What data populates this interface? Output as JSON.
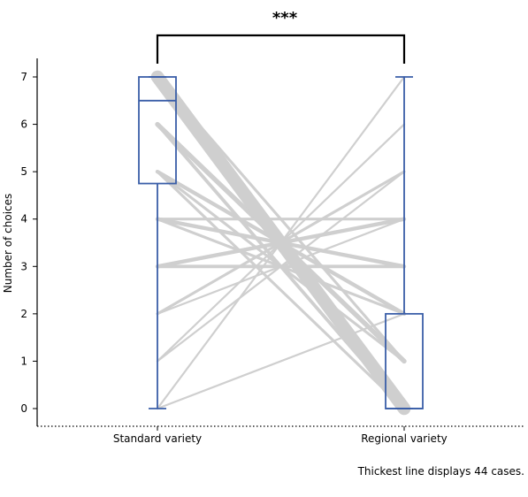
{
  "chart_data": {
    "type": "boxplot-with-paired-lines",
    "categories": [
      "Standard variety",
      "Regional variety"
    ],
    "ylabel": "Number of choices",
    "ylim": [
      0,
      7
    ],
    "yticks": [
      0,
      1,
      2,
      3,
      4,
      5,
      6,
      7
    ],
    "grid": false,
    "significance": "***",
    "note": "Thickest line displays 44 cases.",
    "colors": {
      "box": "#3a5ea8",
      "lines": "#cfcfcf",
      "axis": "#000000"
    },
    "boxes": [
      {
        "category": "Standard variety",
        "min": 0,
        "q1": 4.75,
        "median": 6.5,
        "q3": 7,
        "max": 7
      },
      {
        "category": "Regional variety",
        "min": 0,
        "q1": 0,
        "median": 0,
        "q3": 2,
        "max": 7
      }
    ],
    "pairs": [
      {
        "standard": 7,
        "regional": 0,
        "cases": 44
      },
      {
        "standard": 6,
        "regional": 1,
        "cases": 6
      },
      {
        "standard": 5,
        "regional": 2,
        "cases": 4
      },
      {
        "standard": 4,
        "regional": 3,
        "cases": 4
      },
      {
        "standard": 3,
        "regional": 4,
        "cases": 4
      },
      {
        "standard": 2,
        "regional": 5,
        "cases": 2
      },
      {
        "standard": 1,
        "regional": 6,
        "cases": 1
      },
      {
        "standard": 0,
        "regional": 7,
        "cases": 1
      },
      {
        "standard": 6,
        "regional": 0,
        "cases": 3
      },
      {
        "standard": 5,
        "regional": 0,
        "cases": 2
      },
      {
        "standard": 5,
        "regional": 1,
        "cases": 2
      },
      {
        "standard": 4,
        "regional": 2,
        "cases": 2
      },
      {
        "standard": 3,
        "regional": 3,
        "cases": 3
      },
      {
        "standard": 4,
        "regional": 4,
        "cases": 2
      },
      {
        "standard": 2,
        "regional": 4,
        "cases": 1
      },
      {
        "standard": 1,
        "regional": 5,
        "cases": 1
      },
      {
        "standard": 0,
        "regional": 2,
        "cases": 1
      },
      {
        "standard": 7,
        "regional": 1,
        "cases": 2
      }
    ]
  }
}
